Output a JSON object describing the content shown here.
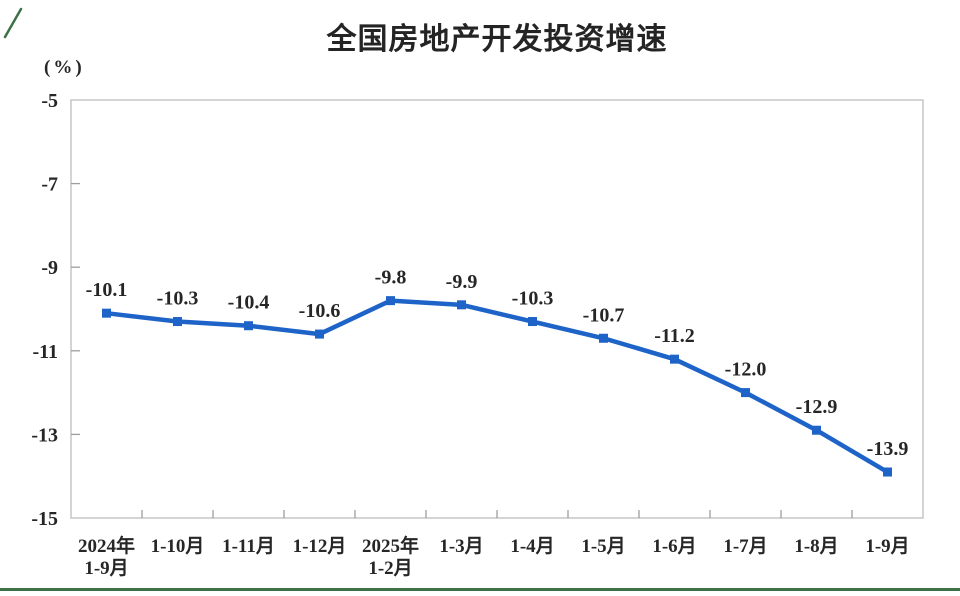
{
  "chart_data": {
    "type": "line",
    "title": "全国房地产开发投资增速",
    "ylabel": "(%)",
    "categories": [
      "2024年\n1-9月",
      "1-10月",
      "1-11月",
      "1-12月",
      "2025年\n1-2月",
      "1-3月",
      "1-4月",
      "1-5月",
      "1-6月",
      "1-7月",
      "1-8月",
      "1-9月"
    ],
    "values": [
      -10.1,
      -10.3,
      -10.4,
      -10.6,
      -9.8,
      -9.9,
      -10.3,
      -10.7,
      -11.2,
      -12.0,
      -12.9,
      -13.9
    ],
    "labels": [
      "-10.1",
      "-10.3",
      "-10.4",
      "-10.6",
      "-9.8",
      "-9.9",
      "-10.3",
      "-10.7",
      "-11.2",
      "-12.0",
      "-12.9",
      "-13.9"
    ],
    "ylim": [
      -15,
      -5
    ],
    "yticks": [
      -5,
      -7,
      -9,
      -11,
      -13,
      -15
    ],
    "grid": false,
    "legend": "none",
    "line_color": "#1e63c8",
    "marker": "square",
    "axis_color": "#bdbdbd",
    "tick_color": "#9e9e9e",
    "label_color": "#262626"
  },
  "decor": {
    "bottom_line_color": "#3f7149",
    "corner_mark_color": "#3f7149"
  }
}
